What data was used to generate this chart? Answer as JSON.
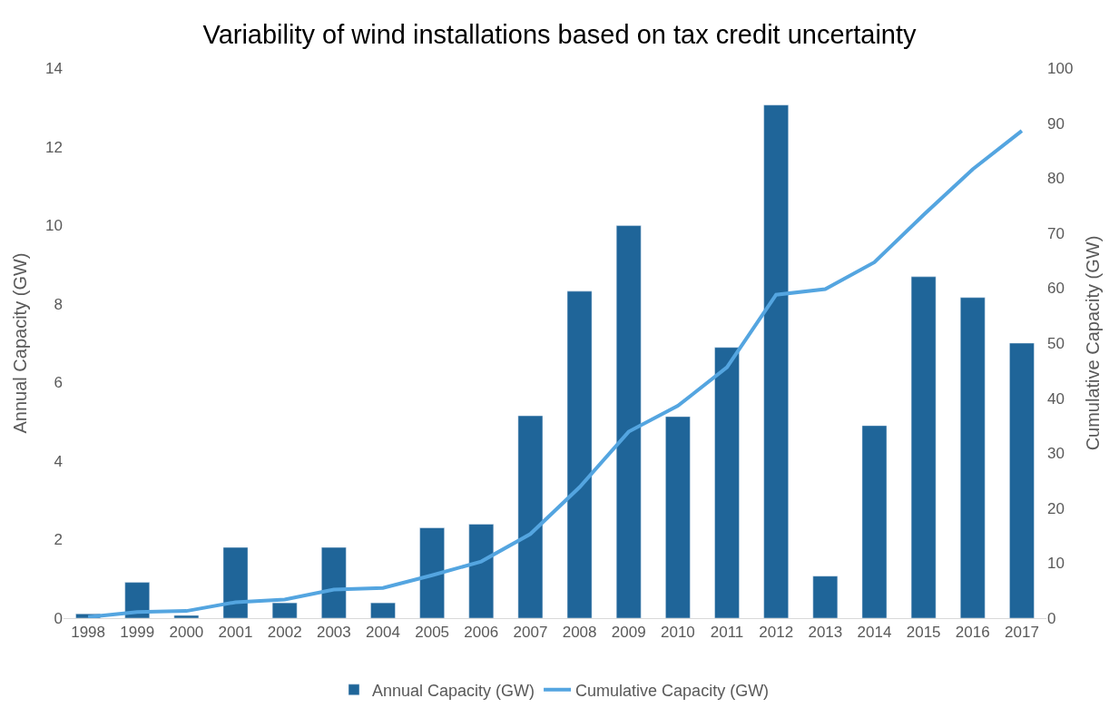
{
  "chart_data": {
    "type": "bar",
    "title": "Variability of wind installations based on tax credit uncertainty",
    "ylabel": "Annual Capacity (GW)",
    "y2label": "Cumulative Capacity (GW)",
    "categories": [
      "1998",
      "1999",
      "2000",
      "2001",
      "2002",
      "2003",
      "2004",
      "2005",
      "2006",
      "2007",
      "2008",
      "2009",
      "2010",
      "2011",
      "2012",
      "2013",
      "2014",
      "2015",
      "2016",
      "2017"
    ],
    "series": [
      {
        "name": "Annual Capacity (GW)",
        "color": "#1f6599",
        "values": [
          0.11,
          0.91,
          0.07,
          1.8,
          0.39,
          1.8,
          0.39,
          2.3,
          2.39,
          5.15,
          8.32,
          9.99,
          5.13,
          6.89,
          13.06,
          1.07,
          4.9,
          8.69,
          8.16,
          7.0
        ]
      },
      {
        "name": "Cumulative Capacity (GW)",
        "type": "line",
        "axis": "y2",
        "color": "#54a5e0",
        "values": [
          0.2,
          1.1,
          1.3,
          2.9,
          3.4,
          5.2,
          5.5,
          7.8,
          10.3,
          15.3,
          23.8,
          33.9,
          38.6,
          45.6,
          58.8,
          59.8,
          64.7,
          73.3,
          81.6,
          88.6
        ]
      }
    ],
    "ylim": [
      0,
      14
    ],
    "yticks": [
      0,
      2,
      4,
      6,
      8,
      10,
      12,
      14
    ],
    "y2lim": [
      0,
      100
    ],
    "y2ticks": [
      0,
      10,
      20,
      30,
      40,
      50,
      60,
      70,
      80,
      90,
      100
    ],
    "legend": "bottom"
  }
}
